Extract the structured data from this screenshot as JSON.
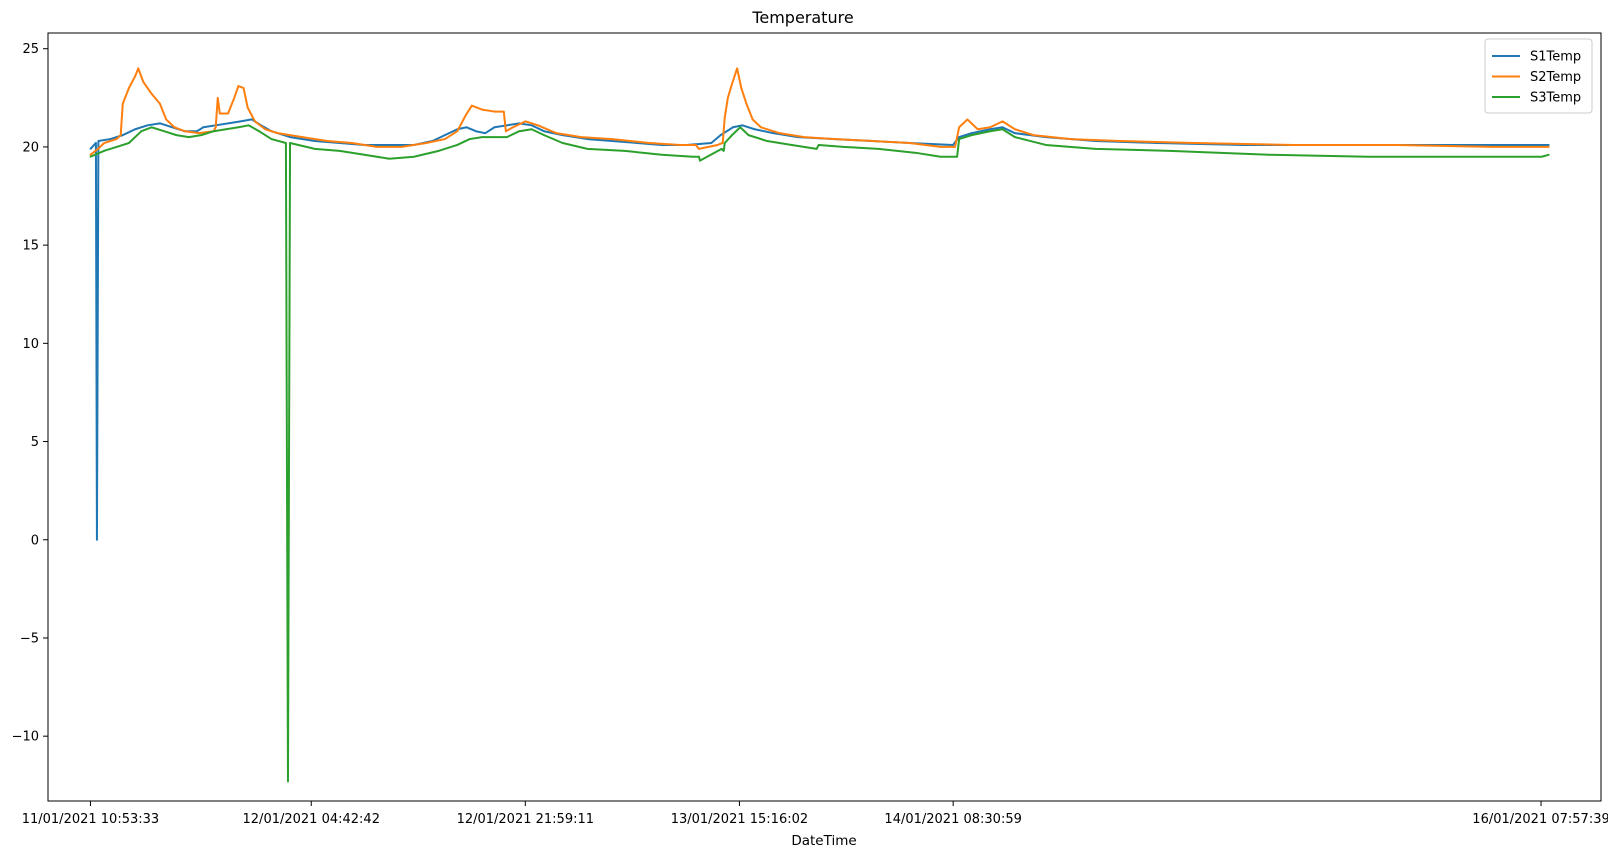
{
  "chart_data": {
    "type": "line",
    "title": "Temperature",
    "xlabel": "DateTime",
    "ylabel": "",
    "ylim": [
      -13.3,
      25.8
    ],
    "y_ticks": [
      25,
      20,
      15,
      10,
      5,
      0,
      -5,
      -10
    ],
    "y_tick_labels": [
      "25",
      "20",
      "15",
      "10",
      "5",
      "0",
      "−5",
      "−10"
    ],
    "xlim": [
      "11/01/2021 07:28:00",
      "16/01/2021 12:48:00"
    ],
    "x_ticks": [
      "11/01/2021 10:53:33",
      "12/01/2021 04:42:42",
      "12/01/2021 21:59:11",
      "13/01/2021 15:16:02",
      "14/01/2021 08:30:59",
      "16/01/2021 07:57:39"
    ],
    "x_tick_labels": [
      "11/01/2021 10:53:33",
      "12/01/2021 04:42:42",
      "12/01/2021 21:59:11",
      "13/01/2021 15:16:02",
      "14/01/2021 08:30:59",
      "16/01/2021 07:57:39"
    ],
    "grid": false,
    "legend_position": "top-right",
    "series": [
      {
        "name": "S1Temp",
        "color": "#1f77b4",
        "points": [
          [
            "11/01/2021 10:53:33",
            19.9
          ],
          [
            "11/01/2021 11:20:00",
            20.2
          ],
          [
            "11/01/2021 11:25:00",
            0.0
          ],
          [
            "11/01/2021 11:32:00",
            20.3
          ],
          [
            "11/01/2021 12:30:00",
            20.4
          ],
          [
            "11/01/2021 13:30:00",
            20.6
          ],
          [
            "11/01/2021 14:30:00",
            20.9
          ],
          [
            "11/01/2021 15:30:00",
            21.1
          ],
          [
            "11/01/2021 16:30:00",
            21.2
          ],
          [
            "11/01/2021 17:30:00",
            21.0
          ],
          [
            "11/01/2021 18:30:00",
            20.8
          ],
          [
            "11/01/2021 19:30:00",
            20.8
          ],
          [
            "11/01/2021 20:00:00",
            21.0
          ],
          [
            "11/01/2021 21:00:00",
            21.1
          ],
          [
            "11/01/2021 22:00:00",
            21.2
          ],
          [
            "11/01/2021 23:00:00",
            21.3
          ],
          [
            "11/01/2021 23:55:00",
            21.4
          ],
          [
            "12/01/2021 00:40:00",
            21.1
          ],
          [
            "12/01/2021 01:30:00",
            20.8
          ],
          [
            "12/01/2021 03:00:00",
            20.5
          ],
          [
            "12/01/2021 05:00:00",
            20.3
          ],
          [
            "12/01/2021 07:00:00",
            20.2
          ],
          [
            "12/01/2021 09:00:00",
            20.1
          ],
          [
            "12/01/2021 11:00:00",
            20.1
          ],
          [
            "12/01/2021 13:00:00",
            20.1
          ],
          [
            "12/01/2021 14:30:00",
            20.3
          ],
          [
            "12/01/2021 15:30:00",
            20.6
          ],
          [
            "12/01/2021 16:30:00",
            20.9
          ],
          [
            "12/01/2021 17:15:00",
            21.0
          ],
          [
            "12/01/2021 18:00:00",
            20.8
          ],
          [
            "12/01/2021 18:45:00",
            20.7
          ],
          [
            "12/01/2021 19:30:00",
            21.0
          ],
          [
            "12/01/2021 20:30:00",
            21.1
          ],
          [
            "12/01/2021 21:30:00",
            21.2
          ],
          [
            "12/01/2021 22:30:00",
            21.1
          ],
          [
            "12/01/2021 23:30:00",
            20.8
          ],
          [
            "13/01/2021 01:00:00",
            20.6
          ],
          [
            "13/01/2021 03:00:00",
            20.4
          ],
          [
            "13/01/2021 05:00:00",
            20.3
          ],
          [
            "13/01/2021 07:00:00",
            20.2
          ],
          [
            "13/01/2021 09:00:00",
            20.1
          ],
          [
            "13/01/2021 11:00:00",
            20.1
          ],
          [
            "13/01/2021 13:00:00",
            20.2
          ],
          [
            "13/01/2021 13:45:00",
            20.6
          ],
          [
            "13/01/2021 14:45:00",
            21.0
          ],
          [
            "13/01/2021 15:30:00",
            21.1
          ],
          [
            "13/01/2021 16:30:00",
            20.9
          ],
          [
            "13/01/2021 18:00:00",
            20.7
          ],
          [
            "13/01/2021 20:00:00",
            20.5
          ],
          [
            "13/01/2021 23:00:00",
            20.4
          ],
          [
            "14/01/2021 02:00:00",
            20.3
          ],
          [
            "14/01/2021 05:00:00",
            20.2
          ],
          [
            "14/01/2021 08:30:00",
            20.1
          ],
          [
            "14/01/2021 09:00:00",
            20.5
          ],
          [
            "14/01/2021 10:00:00",
            20.7
          ],
          [
            "14/01/2021 11:30:00",
            20.9
          ],
          [
            "14/01/2021 12:30:00",
            21.0
          ],
          [
            "14/01/2021 13:30:00",
            20.7
          ],
          [
            "14/01/2021 16:00:00",
            20.5
          ],
          [
            "14/01/2021 20:00:00",
            20.3
          ],
          [
            "15/01/2021 01:00:00",
            20.2
          ],
          [
            "15/01/2021 08:00:00",
            20.1
          ],
          [
            "15/01/2021 16:00:00",
            20.1
          ],
          [
            "16/01/2021 00:00:00",
            20.1
          ],
          [
            "16/01/2021 08:00:00",
            20.1
          ],
          [
            "16/01/2021 08:35:00",
            20.1
          ]
        ]
      },
      {
        "name": "S2Temp",
        "color": "#ff7f0e",
        "points": [
          [
            "11/01/2021 10:53:33",
            19.6
          ],
          [
            "11/01/2021 11:30:00",
            19.9
          ],
          [
            "11/01/2021 12:00:00",
            20.2
          ],
          [
            "11/01/2021 13:00:00",
            20.4
          ],
          [
            "11/01/2021 13:20:00",
            20.6
          ],
          [
            "11/01/2021 13:30:00",
            22.2
          ],
          [
            "11/01/2021 14:00:00",
            23.0
          ],
          [
            "11/01/2021 14:30:00",
            23.6
          ],
          [
            "11/01/2021 14:45:00",
            24.0
          ],
          [
            "11/01/2021 15:10:00",
            23.3
          ],
          [
            "11/01/2021 15:50:00",
            22.7
          ],
          [
            "11/01/2021 16:30:00",
            22.2
          ],
          [
            "11/01/2021 17:00:00",
            21.4
          ],
          [
            "11/01/2021 17:40:00",
            21.0
          ],
          [
            "11/01/2021 18:30:00",
            20.8
          ],
          [
            "11/01/2021 19:40:00",
            20.7
          ],
          [
            "11/01/2021 20:50:00",
            20.8
          ],
          [
            "11/01/2021 21:00:00",
            21.0
          ],
          [
            "11/01/2021 21:10:00",
            22.5
          ],
          [
            "11/01/2021 21:20:00",
            21.7
          ],
          [
            "11/01/2021 22:00:00",
            21.7
          ],
          [
            "11/01/2021 22:30:00",
            22.5
          ],
          [
            "11/01/2021 22:50:00",
            23.1
          ],
          [
            "11/01/2021 23:15:00",
            23.0
          ],
          [
            "11/01/2021 23:35:00",
            22.0
          ],
          [
            "12/01/2021 00:10:00",
            21.3
          ],
          [
            "12/01/2021 01:00:00",
            20.9
          ],
          [
            "12/01/2021 02:00:00",
            20.7
          ],
          [
            "12/01/2021 04:00:00",
            20.5
          ],
          [
            "12/01/2021 06:00:00",
            20.3
          ],
          [
            "12/01/2021 08:00:00",
            20.2
          ],
          [
            "12/01/2021 10:00:00",
            20.0
          ],
          [
            "12/01/2021 12:00:00",
            20.0
          ],
          [
            "12/01/2021 14:00:00",
            20.2
          ],
          [
            "12/01/2021 15:30:00",
            20.4
          ],
          [
            "12/01/2021 16:30:00",
            20.8
          ],
          [
            "12/01/2021 17:10:00",
            21.6
          ],
          [
            "12/01/2021 17:40:00",
            22.1
          ],
          [
            "12/01/2021 18:30:00",
            21.9
          ],
          [
            "12/01/2021 19:30:00",
            21.8
          ],
          [
            "12/01/2021 20:15:00",
            21.8
          ],
          [
            "12/01/2021 20:25:00",
            20.8
          ],
          [
            "12/01/2021 21:00:00",
            21.0
          ],
          [
            "12/01/2021 22:00:00",
            21.3
          ],
          [
            "12/01/2021 23:00:00",
            21.1
          ],
          [
            "13/01/2021 00:30:00",
            20.7
          ],
          [
            "13/01/2021 02:30:00",
            20.5
          ],
          [
            "13/01/2021 05:00:00",
            20.4
          ],
          [
            "13/01/2021 08:00:00",
            20.2
          ],
          [
            "13/01/2021 10:30:00",
            20.1
          ],
          [
            "13/01/2021 11:45:00",
            20.1
          ],
          [
            "13/01/2021 12:00:00",
            19.9
          ],
          [
            "13/01/2021 13:30:00",
            20.1
          ],
          [
            "13/01/2021 13:55:00",
            20.2
          ],
          [
            "13/01/2021 14:05:00",
            21.5
          ],
          [
            "13/01/2021 14:20:00",
            22.5
          ],
          [
            "13/01/2021 14:40:00",
            23.2
          ],
          [
            "13/01/2021 15:05:00",
            24.0
          ],
          [
            "13/01/2021 15:25:00",
            23.0
          ],
          [
            "13/01/2021 15:50:00",
            22.2
          ],
          [
            "13/01/2021 16:20:00",
            21.4
          ],
          [
            "13/01/2021 17:00:00",
            21.0
          ],
          [
            "13/01/2021 18:30:00",
            20.7
          ],
          [
            "13/01/2021 20:30:00",
            20.5
          ],
          [
            "13/01/2021 23:00:00",
            20.4
          ],
          [
            "14/01/2021 02:00:00",
            20.3
          ],
          [
            "14/01/2021 05:00:00",
            20.2
          ],
          [
            "14/01/2021 07:30:00",
            20.0
          ],
          [
            "14/01/2021 08:40:00",
            20.0
          ],
          [
            "14/01/2021 09:00:00",
            21.0
          ],
          [
            "14/01/2021 09:40:00",
            21.4
          ],
          [
            "14/01/2021 10:30:00",
            20.9
          ],
          [
            "14/01/2021 11:30:00",
            21.0
          ],
          [
            "14/01/2021 12:30:00",
            21.3
          ],
          [
            "14/01/2021 13:30:00",
            20.9
          ],
          [
            "14/01/2021 15:00:00",
            20.6
          ],
          [
            "14/01/2021 18:00:00",
            20.4
          ],
          [
            "14/01/2021 22:00:00",
            20.3
          ],
          [
            "15/01/2021 04:00:00",
            20.2
          ],
          [
            "15/01/2021 12:00:00",
            20.1
          ],
          [
            "15/01/2021 20:00:00",
            20.1
          ],
          [
            "16/01/2021 04:00:00",
            20.0
          ],
          [
            "16/01/2021 08:35:00",
            20.0
          ]
        ]
      },
      {
        "name": "S3Temp",
        "color": "#2ca02c",
        "points": [
          [
            "11/01/2021 10:53:33",
            19.5
          ],
          [
            "11/01/2021 12:00:00",
            19.8
          ],
          [
            "11/01/2021 13:00:00",
            20.0
          ],
          [
            "11/01/2021 14:00:00",
            20.2
          ],
          [
            "11/01/2021 15:00:00",
            20.8
          ],
          [
            "11/01/2021 15:50:00",
            21.0
          ],
          [
            "11/01/2021 16:50:00",
            20.8
          ],
          [
            "11/01/2021 17:50:00",
            20.6
          ],
          [
            "11/01/2021 18:50:00",
            20.5
          ],
          [
            "11/01/2021 19:50:00",
            20.6
          ],
          [
            "11/01/2021 20:50:00",
            20.8
          ],
          [
            "11/01/2021 21:50:00",
            20.9
          ],
          [
            "11/01/2021 22:50:00",
            21.0
          ],
          [
            "11/01/2021 23:40:00",
            21.1
          ],
          [
            "12/01/2021 00:30:00",
            20.8
          ],
          [
            "12/01/2021 01:30:00",
            20.4
          ],
          [
            "12/01/2021 02:40:00",
            20.2
          ],
          [
            "12/01/2021 02:50:00",
            -12.3
          ],
          [
            "12/01/2021 03:00:00",
            20.2
          ],
          [
            "12/01/2021 05:00:00",
            19.9
          ],
          [
            "12/01/2021 07:00:00",
            19.8
          ],
          [
            "12/01/2021 09:00:00",
            19.6
          ],
          [
            "12/01/2021 11:00:00",
            19.4
          ],
          [
            "12/01/2021 13:00:00",
            19.5
          ],
          [
            "12/01/2021 15:00:00",
            19.8
          ],
          [
            "12/01/2021 16:30:00",
            20.1
          ],
          [
            "12/01/2021 17:30:00",
            20.4
          ],
          [
            "12/01/2021 18:30:00",
            20.5
          ],
          [
            "12/01/2021 20:30:00",
            20.5
          ],
          [
            "12/01/2021 21:30:00",
            20.8
          ],
          [
            "12/01/2021 22:30:00",
            20.9
          ],
          [
            "12/01/2021 23:30:00",
            20.6
          ],
          [
            "13/01/2021 01:00:00",
            20.2
          ],
          [
            "13/01/2021 03:00:00",
            19.9
          ],
          [
            "13/01/2021 06:00:00",
            19.8
          ],
          [
            "13/01/2021 09:00:00",
            19.6
          ],
          [
            "13/01/2021 11:30:00",
            19.5
          ],
          [
            "13/01/2021 12:00:00",
            19.5
          ],
          [
            "13/01/2021 12:05:00",
            19.3
          ],
          [
            "13/01/2021 13:50:00",
            19.9
          ],
          [
            "13/01/2021 14:00:00",
            19.8
          ],
          [
            "13/01/2021 14:05:00",
            20.2
          ],
          [
            "13/01/2021 14:40:00",
            20.6
          ],
          [
            "13/01/2021 15:20:00",
            21.0
          ],
          [
            "13/01/2021 16:00:00",
            20.6
          ],
          [
            "13/01/2021 17:30:00",
            20.3
          ],
          [
            "13/01/2021 19:30:00",
            20.1
          ],
          [
            "13/01/2021 21:30:00",
            19.9
          ],
          [
            "13/01/2021 21:40:00",
            20.1
          ],
          [
            "13/01/2021 23:40:00",
            20.0
          ],
          [
            "14/01/2021 02:30:00",
            19.9
          ],
          [
            "14/01/2021 05:30:00",
            19.7
          ],
          [
            "14/01/2021 07:30:00",
            19.5
          ],
          [
            "14/01/2021 08:50:00",
            19.5
          ],
          [
            "14/01/2021 09:00:00",
            20.4
          ],
          [
            "14/01/2021 10:00:00",
            20.6
          ],
          [
            "14/01/2021 11:30:00",
            20.8
          ],
          [
            "14/01/2021 12:30:00",
            20.9
          ],
          [
            "14/01/2021 13:30:00",
            20.5
          ],
          [
            "14/01/2021 16:00:00",
            20.1
          ],
          [
            "14/01/2021 20:00:00",
            19.9
          ],
          [
            "15/01/2021 02:00:00",
            19.8
          ],
          [
            "15/01/2021 10:00:00",
            19.6
          ],
          [
            "15/01/2021 18:00:00",
            19.5
          ],
          [
            "16/01/2021 02:00:00",
            19.5
          ],
          [
            "16/01/2021 08:00:00",
            19.5
          ],
          [
            "16/01/2021 08:35:00",
            19.6
          ]
        ]
      }
    ]
  }
}
